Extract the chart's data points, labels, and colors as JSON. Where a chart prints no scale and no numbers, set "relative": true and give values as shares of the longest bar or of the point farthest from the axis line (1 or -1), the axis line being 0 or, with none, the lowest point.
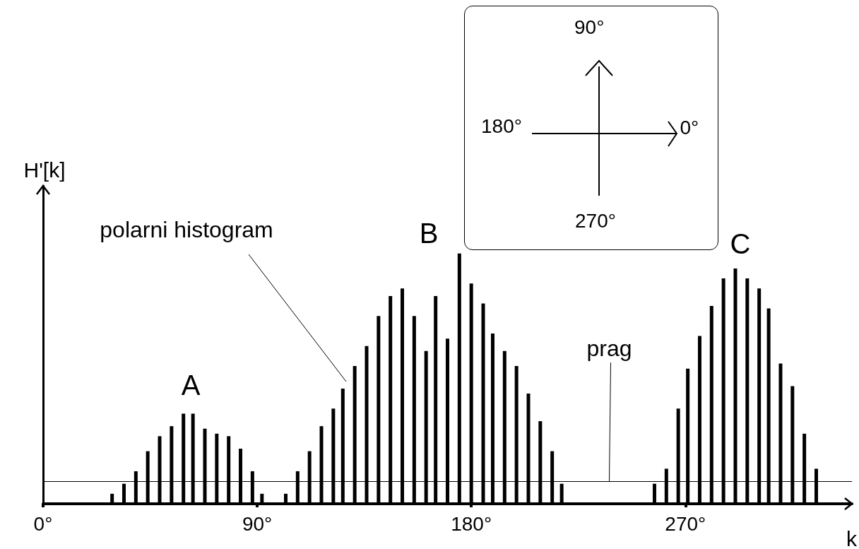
{
  "chart_data": {
    "type": "bar",
    "relative": true,
    "xlabel": "k",
    "ylabel": "H'[k]",
    "x": [
      29,
      34,
      39,
      44,
      49,
      54,
      59,
      63,
      68,
      73,
      78,
      83,
      88,
      92,
      102,
      107,
      112,
      117,
      122,
      126,
      131,
      136,
      141,
      146,
      151,
      156,
      161,
      165,
      170,
      175,
      180,
      185,
      189,
      194,
      199,
      204,
      209,
      214,
      218,
      257,
      262,
      267,
      271,
      276,
      281,
      286,
      291,
      296,
      301,
      305,
      310,
      315,
      320,
      325
    ],
    "values": [
      0.04,
      0.08,
      0.13,
      0.21,
      0.27,
      0.31,
      0.36,
      0.36,
      0.3,
      0.28,
      0.27,
      0.22,
      0.13,
      0.04,
      0.04,
      0.13,
      0.21,
      0.31,
      0.38,
      0.46,
      0.55,
      0.63,
      0.75,
      0.83,
      0.86,
      0.75,
      0.61,
      0.83,
      0.66,
      1,
      0.88,
      0.8,
      0.68,
      0.61,
      0.55,
      0.44,
      0.33,
      0.21,
      0.08,
      0.08,
      0.14,
      0.38,
      0.54,
      0.67,
      0.79,
      0.9,
      0.94,
      0.9,
      0.86,
      0.78,
      0.56,
      0.47,
      0.28,
      0.14
    ],
    "color": "#000000",
    "xlim": [
      0,
      340
    ],
    "xticks": [
      {
        "value": 0,
        "label": "0°"
      },
      {
        "value": 90,
        "label": "90°"
      },
      {
        "value": 180,
        "label": "180°"
      },
      {
        "value": 270,
        "label": "270°"
      }
    ],
    "grid": false,
    "ref_lines": [
      {
        "axis": "y",
        "value": 0.09,
        "label": "prag"
      }
    ],
    "annotations": [
      "90°",
      "180°",
      "0°",
      "270°",
      "A",
      "B",
      "C",
      "polarni histogram"
    ]
  }
}
